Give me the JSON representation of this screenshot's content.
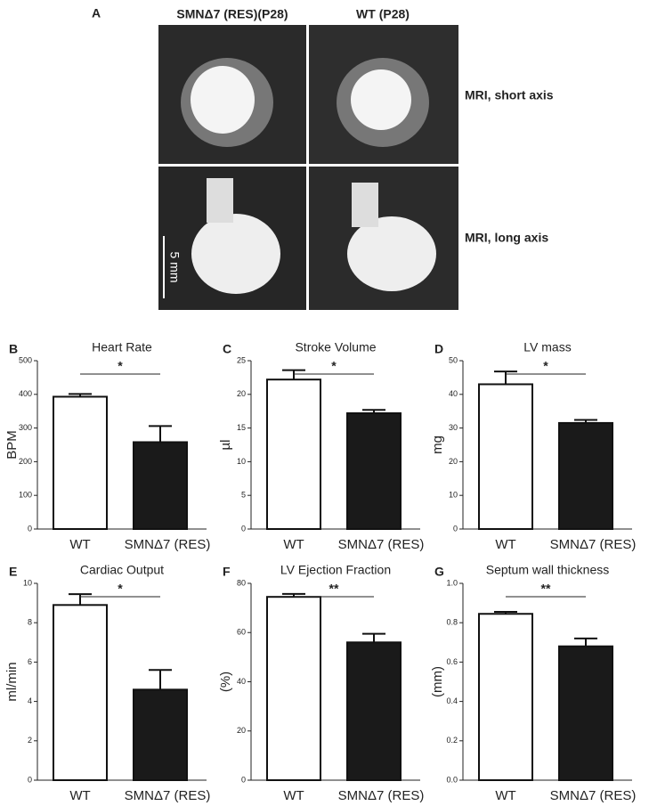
{
  "figure_a": {
    "panel": "A",
    "col1": "SMNΔ7 (RES)(P28)",
    "col2": "WT (P28)",
    "row1": "MRI, short axis",
    "row2": "MRI, long axis",
    "scale": "5 mm"
  },
  "chart_data": [
    {
      "type": "bar",
      "panel": "B",
      "title": "Heart Rate",
      "y_label": "BPM",
      "categories": [
        "WT",
        "SMNΔ7 (RES)"
      ],
      "values": [
        393,
        258
      ],
      "errors": [
        8,
        48
      ],
      "colors": [
        "#ffffff",
        "#1a1a1a"
      ],
      "ylim": [
        0,
        500
      ],
      "yticks": [
        0,
        100,
        200,
        300,
        400,
        500
      ],
      "significance": "*"
    },
    {
      "type": "bar",
      "panel": "C",
      "title": "Stroke Volume",
      "y_label": "µl",
      "categories": [
        "WT",
        "SMNΔ7 (RES)"
      ],
      "values": [
        22.2,
        17.2
      ],
      "errors": [
        1.4,
        0.5
      ],
      "colors": [
        "#ffffff",
        "#1a1a1a"
      ],
      "ylim": [
        0,
        25
      ],
      "yticks": [
        0,
        5,
        10,
        15,
        20,
        25
      ],
      "significance": "*"
    },
    {
      "type": "bar",
      "panel": "D",
      "title": "LV mass",
      "y_label": "mg",
      "categories": [
        "WT",
        "SMNΔ7 (RES)"
      ],
      "values": [
        43,
        31.5
      ],
      "errors": [
        3.8,
        0.9
      ],
      "colors": [
        "#ffffff",
        "#1a1a1a"
      ],
      "ylim": [
        0,
        50
      ],
      "yticks": [
        0,
        10,
        20,
        30,
        40,
        50
      ],
      "significance": "*"
    },
    {
      "type": "bar",
      "panel": "E",
      "title": "Cardiac Output",
      "y_label": "ml/min",
      "categories": [
        "WT",
        "SMNΔ7 (RES)"
      ],
      "values": [
        8.9,
        4.6
      ],
      "errors": [
        0.55,
        1.0
      ],
      "colors": [
        "#ffffff",
        "#1a1a1a"
      ],
      "ylim": [
        0,
        10
      ],
      "yticks": [
        0,
        2,
        4,
        6,
        8,
        10
      ],
      "significance": "*"
    },
    {
      "type": "bar",
      "panel": "F",
      "title": "LV Ejection Fraction",
      "y_label": "(%)",
      "categories": [
        "WT",
        "SMNΔ7 (RES)"
      ],
      "values": [
        74.5,
        56
      ],
      "errors": [
        1.2,
        3.5
      ],
      "colors": [
        "#ffffff",
        "#1a1a1a"
      ],
      "ylim": [
        0,
        80
      ],
      "yticks": [
        0,
        20,
        40,
        60,
        80
      ],
      "significance": "**"
    },
    {
      "type": "bar",
      "panel": "G",
      "title": "Septum wall thickness",
      "y_label": "(mm)",
      "categories": [
        "WT",
        "SMNΔ7 (RES)"
      ],
      "values": [
        0.845,
        0.68
      ],
      "errors": [
        0.01,
        0.04
      ],
      "colors": [
        "#ffffff",
        "#1a1a1a"
      ],
      "ylim": [
        0,
        1
      ],
      "yticks": [
        {
          "value": 0,
          "label": "0.0"
        },
        0.2,
        0.4,
        0.6,
        0.8,
        {
          "value": 1,
          "label": "1.0"
        }
      ],
      "significance": "**"
    }
  ]
}
